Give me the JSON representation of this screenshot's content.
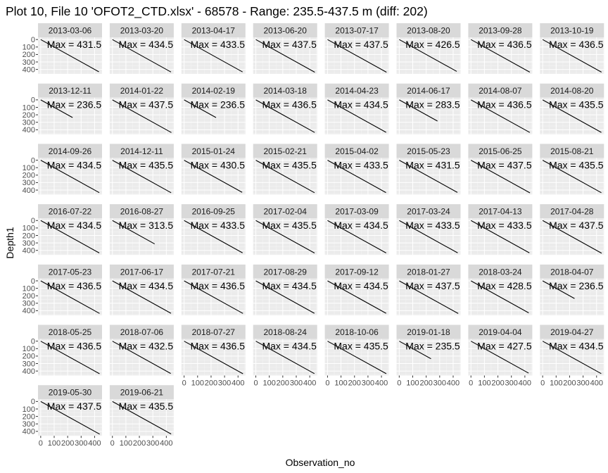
{
  "chart_data": {
    "type": "line",
    "title": "Plot 10, File 10 'OFOT2_CTD.xlsx' - 68578 - Range: 235.5-437.5 m (diff: 202)",
    "xlabel": "Observation_no",
    "ylabel": "Depth1",
    "x_ticks": [
      0,
      100,
      200,
      300,
      400
    ],
    "x_tick_labels": [
      "0",
      "100",
      "200",
      "300",
      "400"
    ],
    "y_ticks": [
      0,
      100,
      200,
      300,
      400
    ],
    "y_tick_labels": [
      "0",
      "100",
      "200",
      "300",
      "400"
    ],
    "xlim": [
      -20,
      455
    ],
    "ylim": [
      460,
      -30
    ],
    "y_reversed": true,
    "grid": true,
    "facet_ncol": 8,
    "label_prefix": "Max = ",
    "panels": [
      {
        "date": "2013-03-06",
        "max": 431.5
      },
      {
        "date": "2013-03-20",
        "max": 434.5
      },
      {
        "date": "2013-04-17",
        "max": 433.5
      },
      {
        "date": "2013-06-20",
        "max": 437.5
      },
      {
        "date": "2013-07-17",
        "max": 437.5
      },
      {
        "date": "2013-08-20",
        "max": 426.5
      },
      {
        "date": "2013-09-28",
        "max": 436.5
      },
      {
        "date": "2013-10-19",
        "max": 436.5
      },
      {
        "date": "2013-12-11",
        "max": 236.5
      },
      {
        "date": "2014-01-22",
        "max": 437.5
      },
      {
        "date": "2014-02-19",
        "max": 236.5
      },
      {
        "date": "2014-03-18",
        "max": 436.5
      },
      {
        "date": "2014-04-23",
        "max": 434.5
      },
      {
        "date": "2014-06-17",
        "max": 283.5
      },
      {
        "date": "2014-08-07",
        "max": 436.5
      },
      {
        "date": "2014-08-20",
        "max": 435.5
      },
      {
        "date": "2014-09-26",
        "max": 434.5
      },
      {
        "date": "2014-12-11",
        "max": 435.5
      },
      {
        "date": "2015-01-24",
        "max": 430.5
      },
      {
        "date": "2015-02-21",
        "max": 435.5
      },
      {
        "date": "2015-04-02",
        "max": 433.5
      },
      {
        "date": "2015-05-23",
        "max": 431.5
      },
      {
        "date": "2015-06-25",
        "max": 437.5
      },
      {
        "date": "2015-08-21",
        "max": 435.5
      },
      {
        "date": "2016-07-22",
        "max": 434.5
      },
      {
        "date": "2016-08-27",
        "max": 313.5
      },
      {
        "date": "2016-09-25",
        "max": 433.5
      },
      {
        "date": "2017-02-04",
        "max": 435.5
      },
      {
        "date": "2017-03-09",
        "max": 434.5
      },
      {
        "date": "2017-03-24",
        "max": 433.5
      },
      {
        "date": "2017-04-13",
        "max": 433.5
      },
      {
        "date": "2017-04-28",
        "max": 437.5
      },
      {
        "date": "2017-05-23",
        "max": 436.5
      },
      {
        "date": "2017-06-17",
        "max": 434.5
      },
      {
        "date": "2017-07-21",
        "max": 436.5
      },
      {
        "date": "2017-08-29",
        "max": 434.5
      },
      {
        "date": "2017-09-12",
        "max": 434.5
      },
      {
        "date": "2018-01-27",
        "max": 437.5
      },
      {
        "date": "2018-03-24",
        "max": 428.5
      },
      {
        "date": "2018-04-07",
        "max": 236.5
      },
      {
        "date": "2018-05-25",
        "max": 436.5
      },
      {
        "date": "2018-07-06",
        "max": 432.5
      },
      {
        "date": "2018-07-27",
        "max": 436.5
      },
      {
        "date": "2018-08-24",
        "max": 434.5
      },
      {
        "date": "2018-10-06",
        "max": 435.5
      },
      {
        "date": "2019-01-18",
        "max": 235.5
      },
      {
        "date": "2019-04-04",
        "max": 427.5
      },
      {
        "date": "2019-04-27",
        "max": 434.5
      },
      {
        "date": "2019-05-30",
        "max": 437.5
      },
      {
        "date": "2019-06-21",
        "max": 435.5
      }
    ]
  }
}
